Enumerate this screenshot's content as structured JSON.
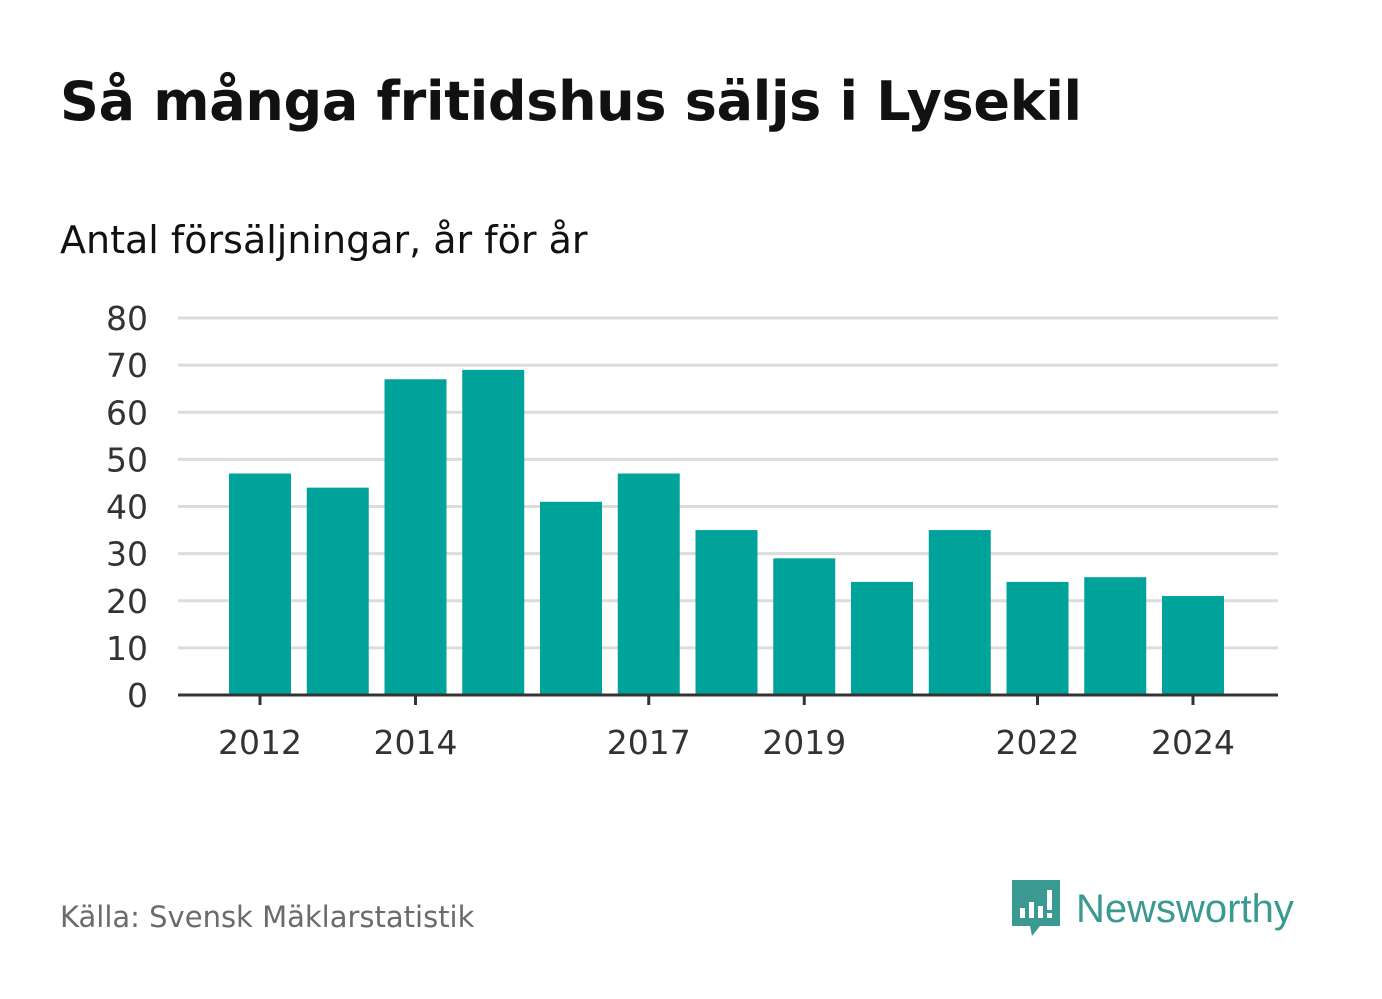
{
  "title": "Så många fritidshus säljs i Lysekil",
  "subtitle": "Antal försäljningar, år för år",
  "source": "Källa: Svensk Mäklarstatistik",
  "brand": {
    "name": "Newsworthy",
    "icon": "newsworthy-bar-chart-bubble-icon",
    "color": "#3a9a92"
  },
  "colors": {
    "bar": "#00a39a",
    "grid": "#dcdcdc",
    "axis": "#333333"
  },
  "chart_data": {
    "type": "bar",
    "categories": [
      "2012",
      "2013",
      "2014",
      "2015",
      "2016",
      "2017",
      "2018",
      "2019",
      "2020",
      "2021",
      "2022",
      "2023",
      "2024"
    ],
    "values": [
      47,
      44,
      67,
      69,
      41,
      47,
      35,
      29,
      24,
      35,
      24,
      25,
      21
    ],
    "x_tick_labels": [
      "2012",
      "2014",
      "2017",
      "2019",
      "2022",
      "2024"
    ],
    "y_ticks": [
      0,
      10,
      20,
      30,
      40,
      50,
      60,
      70,
      80
    ],
    "ylim": [
      0,
      80
    ],
    "grid": true,
    "legend": "none"
  }
}
